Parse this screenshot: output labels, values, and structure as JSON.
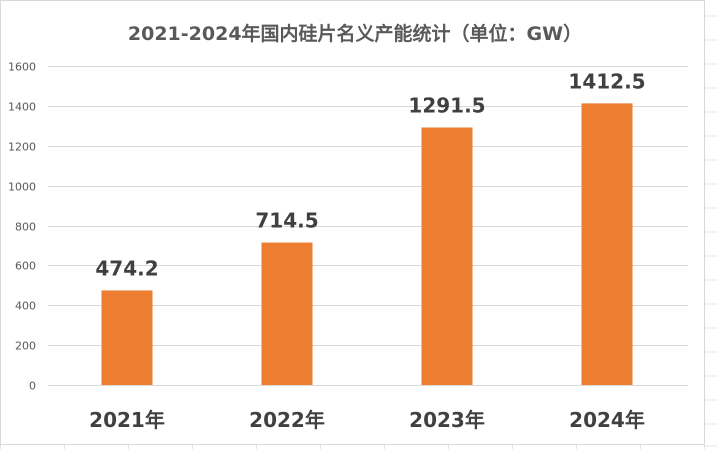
{
  "chart_data": {
    "type": "bar",
    "title": "2021-2024年国内硅片名义产能统计（单位：GW）",
    "categories": [
      "2021年",
      "2022年",
      "2023年",
      "2024年"
    ],
    "values": [
      474.2,
      714.5,
      1291.5,
      1412.5
    ],
    "value_labels": [
      "474.2",
      "714.5",
      "1291.5",
      "1412.5"
    ],
    "y_ticks": [
      "0",
      "200",
      "400",
      "600",
      "800",
      "1000",
      "1200",
      "1400",
      "1600"
    ],
    "ylim": [
      0,
      1600
    ],
    "grid": true,
    "legend": "none",
    "xlabel": "",
    "ylabel": ""
  },
  "colors": {
    "bar": "#ED7D31",
    "gridline": "#D9D9D9",
    "text": "#404040",
    "tick_text": "#595959",
    "sheet_grid": "#E4E4E4"
  }
}
